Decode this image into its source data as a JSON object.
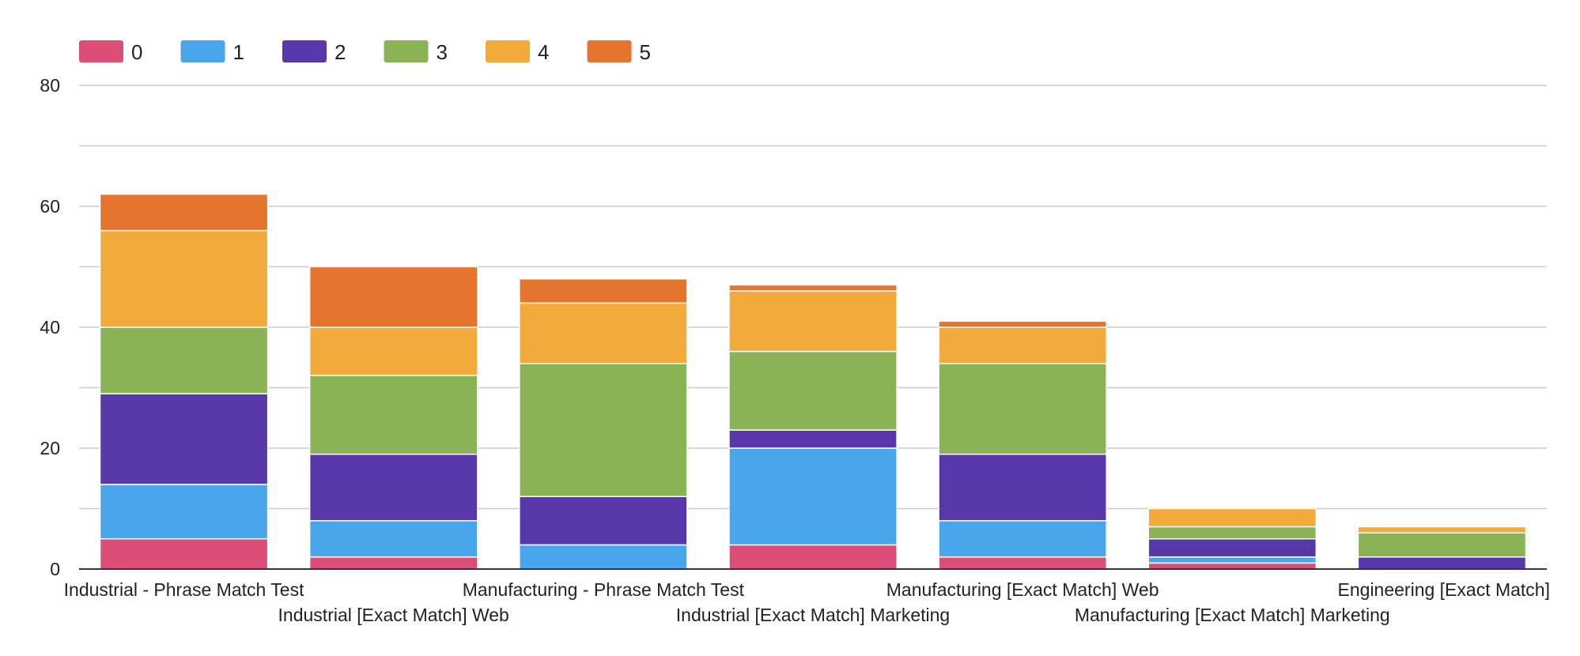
{
  "chart_data": {
    "type": "bar",
    "stacked": true,
    "title": "",
    "xlabel": "",
    "ylabel": "",
    "ylim": [
      0,
      80
    ],
    "yticks": [
      0,
      20,
      40,
      60,
      80
    ],
    "grid": true,
    "legend_position": "top-left",
    "categories": [
      "Industrial - Phrase Match Test",
      "Industrial [Exact Match] Web",
      "Manufacturing - Phrase Match Test",
      "Industrial [Exact Match] Marketing",
      "Manufacturing [Exact Match] Web",
      "Manufacturing [Exact Match] Marketing",
      "Engineering [Exact Match]"
    ],
    "series": [
      {
        "name": "0",
        "color": "#db4e78",
        "values": [
          5,
          2,
          0,
          4,
          2,
          1,
          0
        ]
      },
      {
        "name": "1",
        "color": "#4aa6eb",
        "values": [
          9,
          6,
          4,
          16,
          6,
          1,
          0
        ]
      },
      {
        "name": "2",
        "color": "#5837ab",
        "values": [
          15,
          11,
          8,
          3,
          11,
          3,
          2
        ]
      },
      {
        "name": "3",
        "color": "#89b355",
        "values": [
          11,
          13,
          22,
          13,
          15,
          2,
          4
        ]
      },
      {
        "name": "4",
        "color": "#f2aa3b",
        "values": [
          16,
          8,
          10,
          10,
          6,
          3,
          1
        ]
      },
      {
        "name": "5",
        "color": "#e5742f",
        "values": [
          6,
          10,
          4,
          1,
          1,
          0,
          0
        ]
      }
    ]
  }
}
